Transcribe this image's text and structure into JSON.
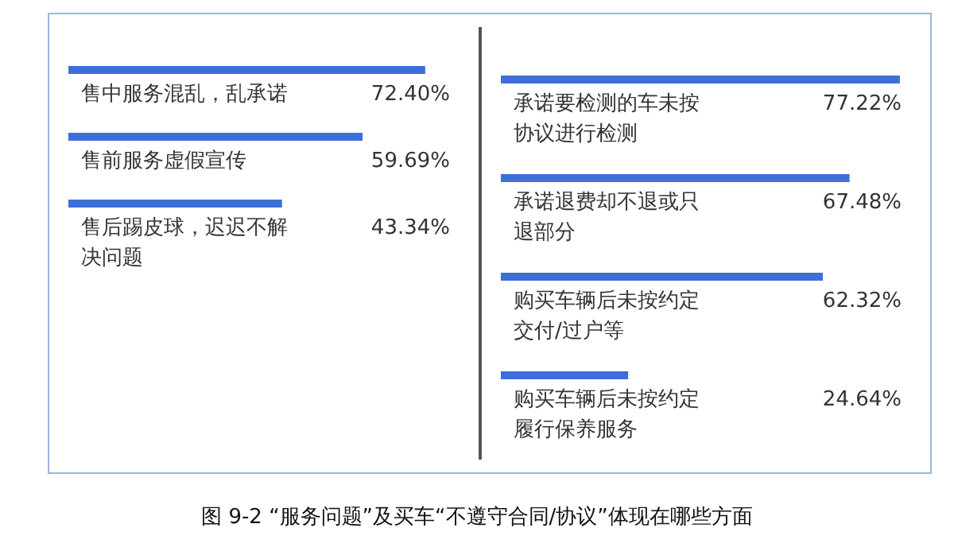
{
  "chart_data": [
    {
      "type": "bar",
      "orientation": "horizontal",
      "categories": [
        "售中服务混乱，乱承诺",
        "售前服务虚假宣传",
        "售后踢皮球，迟迟不解决问题"
      ],
      "values": [
        72.4,
        59.69,
        43.34
      ],
      "value_labels": [
        "72.40%",
        "59.69%",
        "43.34%"
      ],
      "color": "#3d6fd8",
      "annotations": [
        "图 9-2 “服务问题”及买车“不遵守合同/协议”体现在哪些方面"
      ]
    },
    {
      "type": "bar",
      "orientation": "horizontal",
      "categories": [
        "承诺要检测的车未按协议进行检测",
        "承诺退费却不退或只退部分",
        "购买车辆后未按约定交付/过户等",
        "购买车辆后未按约定履行保养服务"
      ],
      "values": [
        77.22,
        67.48,
        62.32,
        24.64
      ],
      "value_labels": [
        "77.22%",
        "67.48%",
        "62.32%",
        "24.64%"
      ],
      "color": "#3d6fd8"
    }
  ]
}
